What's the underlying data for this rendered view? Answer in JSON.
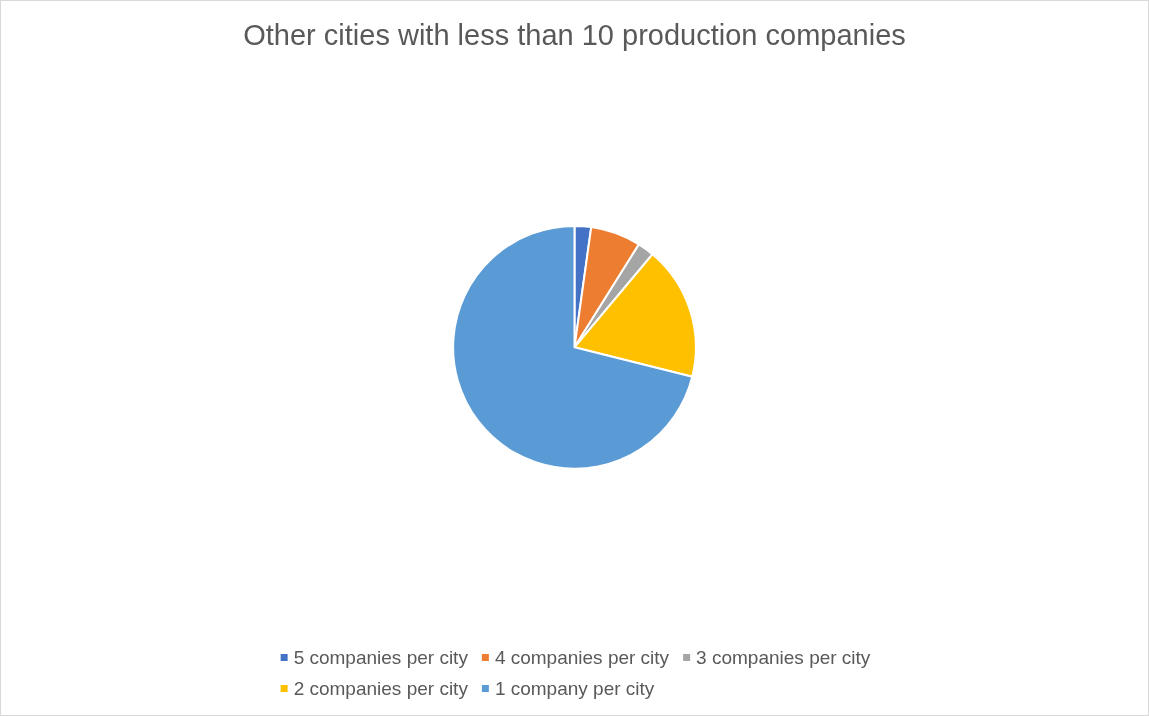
{
  "chart_data": {
    "type": "pie",
    "title": "Other cities with less than 10 production companies",
    "categories": [
      "5 companies per city",
      "4 companies per city",
      "3 companies per city",
      "2 companies per city",
      "1 company per city"
    ],
    "values": [
      2.2,
      6.7,
      2.2,
      17.8,
      71.1
    ],
    "colors": [
      "#4472c4",
      "#ed7d31",
      "#a5a5a5",
      "#ffc000",
      "#5b9bd5"
    ],
    "legend": "bottom"
  }
}
